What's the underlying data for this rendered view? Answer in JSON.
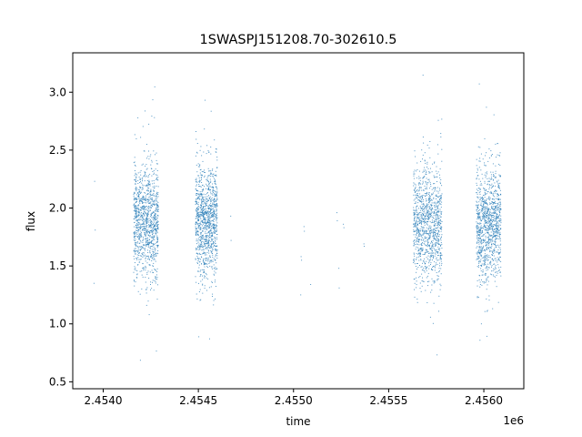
{
  "chart_data": {
    "type": "scatter",
    "title": "1SWASPJ151208.70-302610.5",
    "xlabel": "time",
    "ylabel": "flux",
    "x_offset_label": "1e6",
    "xlim": [
      2453840,
      2456210
    ],
    "ylim": [
      0.44,
      3.34
    ],
    "x_ticks": [
      2454000,
      2454500,
      2455000,
      2455500,
      2456000
    ],
    "x_tick_labels": [
      "2.4540",
      "2.4545",
      "2.4550",
      "2.4555",
      "2.4560"
    ],
    "y_ticks": [
      0.5,
      1.0,
      1.5,
      2.0,
      2.5,
      3.0
    ],
    "y_tick_labels": [
      "0.5",
      "1.0",
      "1.5",
      "2.0",
      "2.5",
      "3.0"
    ],
    "grid": false,
    "marker_color": "#1f77b4",
    "observing_seasons": [
      {
        "x_range": [
          2454160,
          2454290
        ],
        "flux_mean": 1.88,
        "flux_range": [
          0.62,
          3.18
        ]
      },
      {
        "x_range": [
          2454485,
          2454600
        ],
        "flux_mean": 1.88,
        "flux_range": [
          0.62,
          3.21
        ]
      },
      {
        "x_range": [
          2455630,
          2455780
        ],
        "flux_mean": 1.85,
        "flux_range": [
          0.57,
          3.24
        ]
      },
      {
        "x_range": [
          2455960,
          2456090
        ],
        "flux_mean": 1.85,
        "flux_range": [
          0.61,
          3.09
        ]
      }
    ],
    "sparse_points": [
      {
        "x": 2453955,
        "y": 2.23
      },
      {
        "x": 2453958,
        "y": 1.81
      },
      {
        "x": 2453952,
        "y": 1.35
      },
      {
        "x": 2454670,
        "y": 1.93
      },
      {
        "x": 2454672,
        "y": 1.72
      },
      {
        "x": 2455040,
        "y": 1.58
      },
      {
        "x": 2455042,
        "y": 1.55
      },
      {
        "x": 2455038,
        "y": 1.25
      },
      {
        "x": 2455055,
        "y": 1.84
      },
      {
        "x": 2455057,
        "y": 1.8
      },
      {
        "x": 2455090,
        "y": 1.34
      },
      {
        "x": 2455228,
        "y": 1.96
      },
      {
        "x": 2455230,
        "y": 1.89
      },
      {
        "x": 2455238,
        "y": 1.48
      },
      {
        "x": 2455240,
        "y": 1.31
      },
      {
        "x": 2455262,
        "y": 1.86
      },
      {
        "x": 2455265,
        "y": 1.83
      },
      {
        "x": 2455370,
        "y": 1.69
      },
      {
        "x": 2455372,
        "y": 1.67
      }
    ]
  }
}
